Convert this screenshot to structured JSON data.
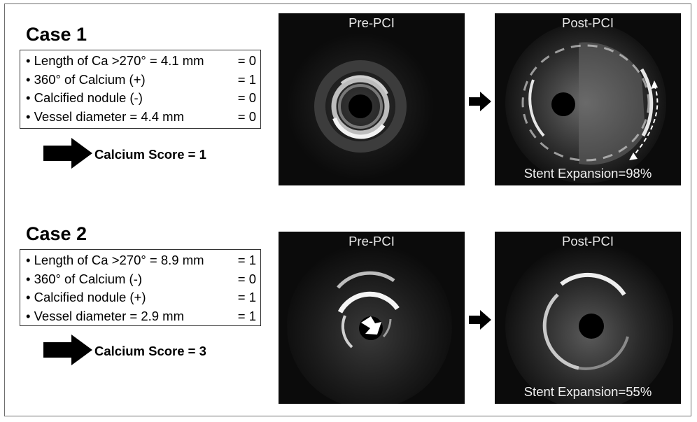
{
  "cases": [
    {
      "title": "Case 1",
      "criteria": [
        {
          "label": "• Length of Ca >270° = 4.1 mm",
          "value": "= 0"
        },
        {
          "label": "• 360° of Calcium (+)",
          "value": "= 1"
        },
        {
          "label": "• Calcified nodule (-)",
          "value": "= 0"
        },
        {
          "label": "• Vessel diameter = 4.4 mm",
          "value": "= 0"
        }
      ],
      "score": "Calcium Score = 1",
      "pre_label": "Pre-PCI",
      "post_label": "Post-PCI",
      "post_caption": "Stent Expansion=98%"
    },
    {
      "title": "Case 2",
      "criteria": [
        {
          "label": "• Length of Ca >270° = 8.9 mm",
          "value": "= 1"
        },
        {
          "label": "• 360° of Calcium (-)",
          "value": "= 0"
        },
        {
          "label": "• Calcified nodule (+)",
          "value": "= 1"
        },
        {
          "label": "• Vessel diameter = 2.9 mm",
          "value": "= 1"
        }
      ],
      "score": "Calcium Score = 3",
      "pre_label": "Pre-PCI",
      "post_label": "Post-PCI",
      "post_caption": "Stent Expansion=55%"
    }
  ],
  "colors": {
    "frame": "#6e6e6e",
    "image_bg": "#0b0b0b",
    "arrow": "#000000"
  }
}
